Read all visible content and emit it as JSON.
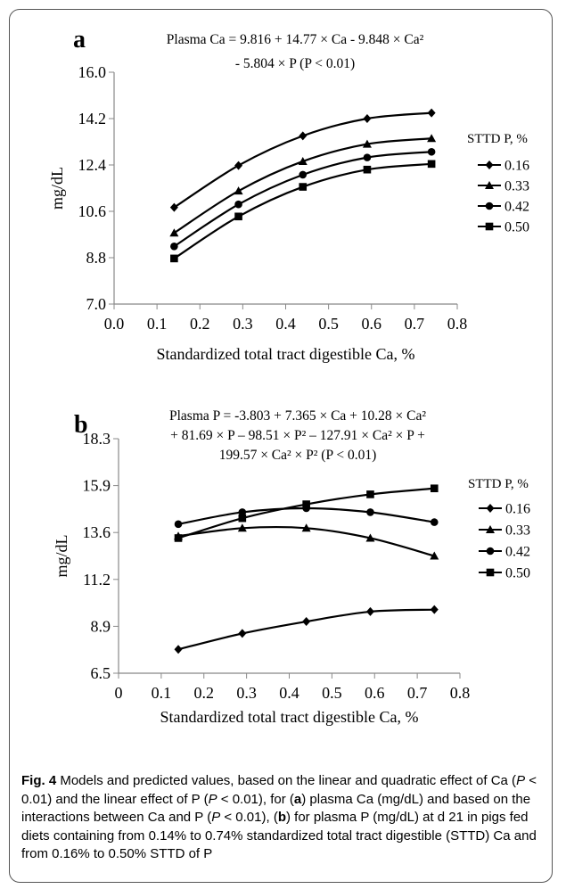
{
  "chart_data": [
    {
      "type": "line",
      "panel_letter": "a",
      "equation_line1": "Plasma Ca = 9.816 + 14.77 × Ca - 9.848 × Ca²",
      "equation_line2": "- 5.804 × P (P < 0.01)",
      "xlabel": "Standardized total tract digestible Ca, %",
      "ylabel": "mg/dL",
      "xlim": [
        0.0,
        0.8
      ],
      "ylim": [
        7.0,
        16.0
      ],
      "x_ticks": [
        "0.0",
        "0.1",
        "0.2",
        "0.3",
        "0.4",
        "0.5",
        "0.6",
        "0.7",
        "0.8"
      ],
      "y_ticks": [
        "7.0",
        "8.8",
        "10.6",
        "12.4",
        "14.2",
        "16.0"
      ],
      "legend_title": "STTD P, %",
      "legend_placement": "right",
      "grid": false,
      "x": [
        0.14,
        0.29,
        0.44,
        0.59,
        0.74
      ],
      "series": [
        {
          "name": "0.16",
          "marker": "diamond",
          "values": [
            10.75,
            12.38,
            13.53,
            14.2,
            14.42
          ]
        },
        {
          "name": "0.33",
          "marker": "triangle",
          "values": [
            9.76,
            11.39,
            12.54,
            13.21,
            13.43
          ]
        },
        {
          "name": "0.42",
          "marker": "circle",
          "values": [
            9.24,
            10.87,
            12.02,
            12.69,
            12.91
          ]
        },
        {
          "name": "0.50",
          "marker": "square",
          "values": [
            8.77,
            10.4,
            11.55,
            12.22,
            12.44
          ]
        }
      ]
    },
    {
      "type": "line",
      "panel_letter": "b",
      "equation_line1": "Plasma P = -3.803 + 7.365 × Ca + 10.28 × Ca²",
      "equation_line2": "+ 81.69 × P – 98.51 × P² – 127.91 × Ca² × P +",
      "equation_line3": "199.57 × Ca² × P² (P < 0.01)",
      "xlabel": "Standardized total tract digestible Ca, %",
      "ylabel": "mg/dL",
      "xlim": [
        0,
        0.8
      ],
      "ylim": [
        6.5,
        18.3
      ],
      "x_ticks": [
        "0",
        "0.1",
        "0.2",
        "0.3",
        "0.4",
        "0.5",
        "0.6",
        "0.7",
        "0.8"
      ],
      "y_ticks": [
        "6.5",
        "8.9",
        "11.2",
        "13.6",
        "15.9",
        "18.3"
      ],
      "legend_title": "STTD P, %",
      "legend_placement": "right",
      "grid": false,
      "x": [
        0.14,
        0.29,
        0.44,
        0.59,
        0.74
      ],
      "series": [
        {
          "name": "0.16",
          "marker": "diamond",
          "values": [
            7.7,
            8.5,
            9.1,
            9.6,
            9.7
          ]
        },
        {
          "name": "0.33",
          "marker": "triangle",
          "values": [
            13.4,
            13.8,
            13.8,
            13.3,
            12.4
          ]
        },
        {
          "name": "0.42",
          "marker": "circle",
          "values": [
            14.0,
            14.6,
            14.8,
            14.6,
            14.1
          ]
        },
        {
          "name": "0.50",
          "marker": "square",
          "values": [
            13.3,
            14.3,
            15.0,
            15.5,
            15.8
          ]
        }
      ]
    }
  ],
  "caption": {
    "fig_label": "Fig. 4",
    "t1": " Models and predicted values, based on the linear and quadratic effect of Ca (",
    "t2": "P",
    "t3": " < 0.01) and the linear effect of P (",
    "t4": "P",
    "t5": " < 0.01), for (",
    "t6": "a",
    "t7": ") plasma Ca (mg/dL) and based on the interactions between Ca and P (",
    "t8": "P",
    "t9": " < 0.01), (",
    "t10": "b",
    "t11": ") for plasma P (mg/dL) at d 21 in pigs fed diets containing from 0.14% to 0.74% standardized total tract digestible (STTD) Ca and from 0.16% to 0.50% STTD of P"
  }
}
